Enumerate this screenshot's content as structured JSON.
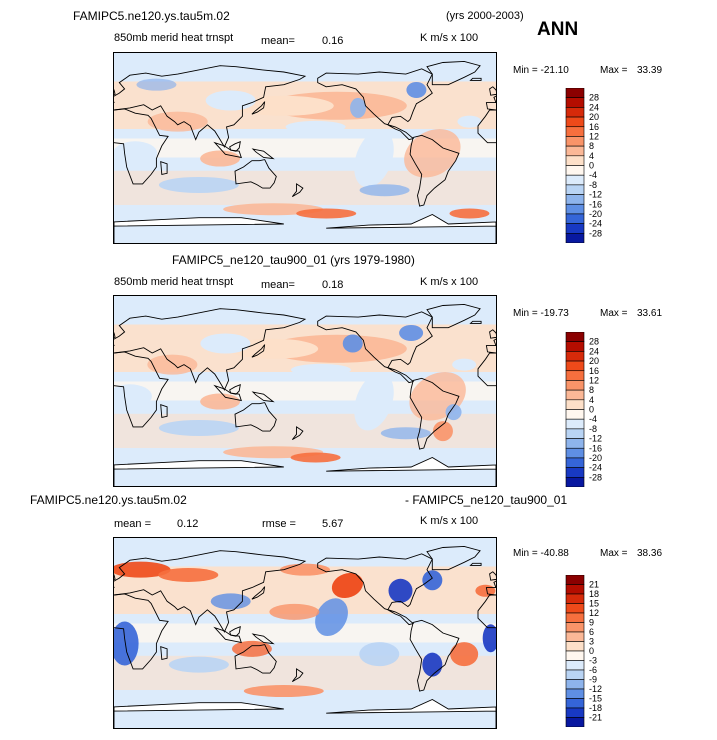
{
  "season": "ANN",
  "panels": [
    {
      "case": "FAMIPC5.ne120.ys.tau5m.02",
      "years": "(yrs 2000-2003)",
      "variable": "850mb merid heat trnspt",
      "mean_label": "mean=",
      "mean_value": "0.16",
      "units": "K m/s x 100",
      "min_label": "Min = -21.10",
      "max_label": "Max =",
      "max_value": "33.39",
      "colorbar_levels": [
        "28",
        "24",
        "20",
        "16",
        "12",
        "8",
        "4",
        "0",
        "-4",
        "-8",
        "-12",
        "-16",
        "-20",
        "-24",
        "-28"
      ],
      "colors": [
        "#8b0000",
        "#b40d00",
        "#d62a0a",
        "#ee4a1a",
        "#f66f3e",
        "#f99469",
        "#fbb897",
        "#fde0c9",
        "#fff7ef",
        "#dcebfb",
        "#b9d4f4",
        "#8eb4ec",
        "#5f8fe4",
        "#3565d8",
        "#1839c3",
        "#0818a0"
      ]
    },
    {
      "case": "FAMIPC5_ne120_tau900_01 (yrs 1979-1980)",
      "variable": "850mb merid heat trnspt",
      "mean_label": "mean=",
      "mean_value": "0.18",
      "units": "K m/s x 100",
      "min_label": "Min = -19.73",
      "max_label": "Max =",
      "max_value": "33.61",
      "colorbar_levels": [
        "28",
        "24",
        "20",
        "16",
        "12",
        "8",
        "4",
        "0",
        "-4",
        "-8",
        "-12",
        "-16",
        "-20",
        "-24",
        "-28"
      ],
      "colors": [
        "#8b0000",
        "#b40d00",
        "#d62a0a",
        "#ee4a1a",
        "#f66f3e",
        "#f99469",
        "#fbb897",
        "#fde0c9",
        "#fff7ef",
        "#dcebfb",
        "#b9d4f4",
        "#8eb4ec",
        "#5f8fe4",
        "#3565d8",
        "#1839c3",
        "#0818a0"
      ]
    },
    {
      "case": "FAMIPC5.ne120.ys.tau5m.02",
      "diff_case": "- FAMIPC5_ne120_tau900_01",
      "mean_label": "mean =",
      "mean_value": "0.12",
      "rmse_label": "rmse =",
      "rmse_value": "5.67",
      "units": "K m/s x 100",
      "min_label": "Min = -40.88",
      "max_label": "Max =",
      "max_value": "38.36",
      "colorbar_levels": [
        "21",
        "18",
        "15",
        "12",
        "9",
        "6",
        "3",
        "0",
        "-3",
        "-6",
        "-9",
        "-12",
        "-15",
        "-18",
        "-21"
      ],
      "colors": [
        "#8b0000",
        "#b40d00",
        "#d62a0a",
        "#ee4a1a",
        "#f66f3e",
        "#f99469",
        "#fbb897",
        "#fde0c9",
        "#fff7ef",
        "#dcebfb",
        "#b9d4f4",
        "#8eb4ec",
        "#5f8fe4",
        "#3565d8",
        "#1839c3",
        "#0818a0"
      ]
    }
  ],
  "chart_data": [
    {
      "type": "heatmap",
      "title": "FAMIPC5.ne120.ys.tau5m.02 (yrs 2000-2003)",
      "subtitle": "850mb merid heat trnspt",
      "units": "K m/s x 100",
      "mean": 0.16,
      "min": -21.1,
      "max": 33.39,
      "levels": [
        -28,
        -24,
        -20,
        -16,
        -12,
        -8,
        -4,
        0,
        4,
        8,
        12,
        16,
        20,
        24,
        28
      ]
    },
    {
      "type": "heatmap",
      "title": "FAMIPC5_ne120_tau900_01 (yrs 1979-1980)",
      "subtitle": "850mb merid heat trnspt",
      "units": "K m/s x 100",
      "mean": 0.18,
      "min": -19.73,
      "max": 33.61,
      "levels": [
        -28,
        -24,
        -20,
        -16,
        -12,
        -8,
        -4,
        0,
        4,
        8,
        12,
        16,
        20,
        24,
        28
      ]
    },
    {
      "type": "heatmap",
      "title": "FAMIPC5.ne120.ys.tau5m.02 - FAMIPC5_ne120_tau900_01",
      "units": "K m/s x 100",
      "mean": 0.12,
      "rmse": 5.67,
      "min": -40.88,
      "max": 38.36,
      "levels": [
        -21,
        -18,
        -15,
        -12,
        -9,
        -6,
        -3,
        0,
        3,
        6,
        9,
        12,
        15,
        18,
        21
      ]
    }
  ]
}
